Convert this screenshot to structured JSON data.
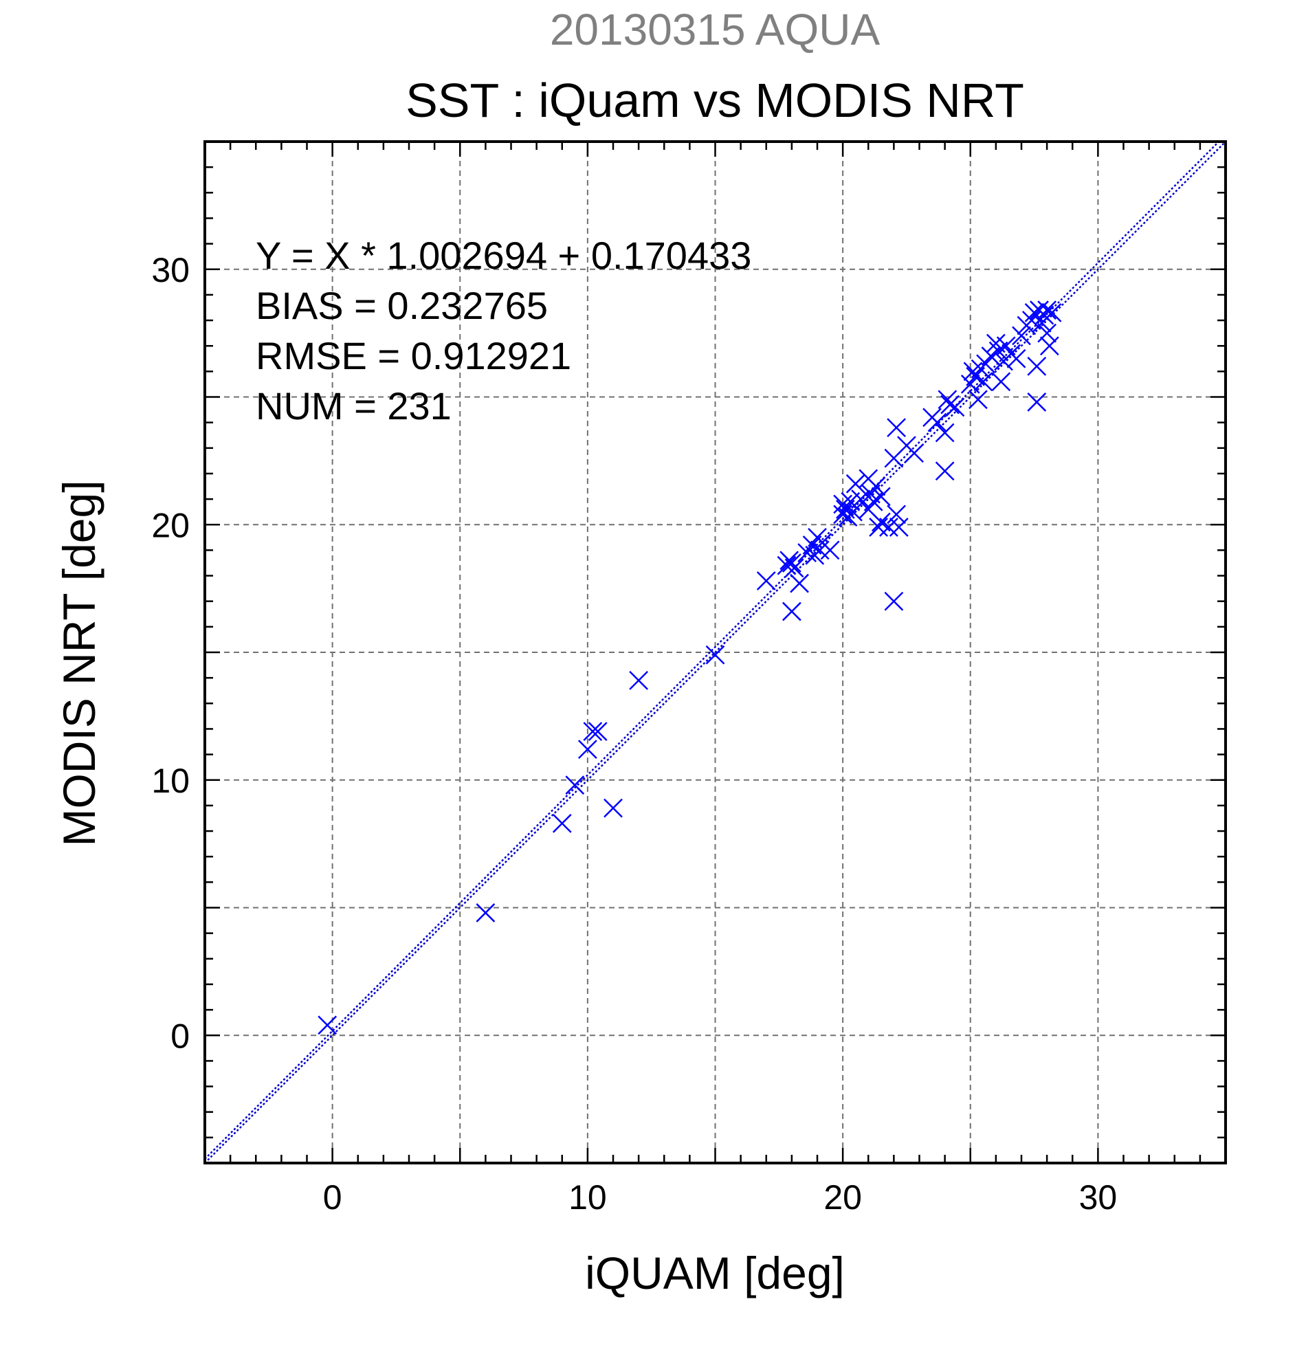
{
  "chart_data": {
    "type": "scatter",
    "title": "20130315 AQUA",
    "subtitle": "SST : iQuam vs MODIS NRT",
    "xlabel": "iQUAM [deg]",
    "ylabel": "MODIS NRT [deg]",
    "xlim": [
      -5,
      35
    ],
    "ylim": [
      -5,
      35
    ],
    "xticks": [
      0,
      10,
      20,
      30
    ],
    "yticks": [
      0,
      10,
      20,
      30
    ],
    "grid": true,
    "marker": "x",
    "marker_color": "#0000ff",
    "line_color": "#0000cc",
    "fit_line": {
      "slope": 1.002694,
      "intercept": 0.170433
    },
    "annotations": [
      "Y = X * 1.002694 + 0.170433",
      "BIAS = 0.232765",
      "RMSE = 0.912921",
      "NUM = 231"
    ],
    "points": [
      [
        -0.2,
        0.4
      ],
      [
        6.0,
        4.8
      ],
      [
        9.0,
        8.3
      ],
      [
        9.5,
        9.8
      ],
      [
        10.0,
        11.2
      ],
      [
        10.2,
        11.9
      ],
      [
        10.4,
        11.9
      ],
      [
        11.0,
        8.9
      ],
      [
        12.0,
        13.9
      ],
      [
        15.0,
        14.9
      ],
      [
        17.0,
        17.8
      ],
      [
        17.8,
        18.4
      ],
      [
        17.9,
        18.6
      ],
      [
        18.0,
        18.5
      ],
      [
        18.1,
        18.3
      ],
      [
        18.0,
        16.6
      ],
      [
        18.3,
        17.7
      ],
      [
        18.6,
        18.9
      ],
      [
        18.8,
        19.2
      ],
      [
        18.9,
        18.8
      ],
      [
        19.0,
        19.5
      ],
      [
        19.1,
        19.0
      ],
      [
        19.2,
        19.3
      ],
      [
        19.5,
        19.0
      ],
      [
        20.0,
        20.4
      ],
      [
        20.0,
        20.8
      ],
      [
        20.1,
        20.6
      ],
      [
        20.2,
        20.3
      ],
      [
        20.3,
        20.9
      ],
      [
        20.4,
        20.5
      ],
      [
        20.5,
        21.6
      ],
      [
        20.7,
        21.0
      ],
      [
        21.0,
        21.8
      ],
      [
        21.0,
        20.6
      ],
      [
        21.1,
        21.2
      ],
      [
        21.2,
        20.9
      ],
      [
        21.3,
        21.5
      ],
      [
        21.4,
        19.9
      ],
      [
        21.5,
        20.1
      ],
      [
        21.5,
        21.1
      ],
      [
        21.8,
        19.9
      ],
      [
        22.0,
        17.0
      ],
      [
        22.0,
        22.6
      ],
      [
        22.1,
        23.8
      ],
      [
        22.1,
        20.4
      ],
      [
        22.2,
        19.9
      ],
      [
        22.5,
        23.1
      ],
      [
        22.8,
        22.8
      ],
      [
        23.5,
        24.2
      ],
      [
        23.7,
        24.0
      ],
      [
        24.0,
        22.1
      ],
      [
        24.0,
        23.6
      ],
      [
        24.1,
        24.9
      ],
      [
        24.2,
        24.7
      ],
      [
        24.4,
        24.6
      ],
      [
        25.0,
        25.5
      ],
      [
        25.1,
        26.0
      ],
      [
        25.2,
        25.8
      ],
      [
        25.3,
        24.9
      ],
      [
        25.4,
        26.1
      ],
      [
        25.5,
        25.6
      ],
      [
        25.6,
        26.3
      ],
      [
        25.8,
        26.6
      ],
      [
        26.0,
        27.1
      ],
      [
        26.1,
        26.8
      ],
      [
        26.2,
        25.6
      ],
      [
        26.3,
        26.4
      ],
      [
        26.4,
        27.0
      ],
      [
        26.6,
        26.7
      ],
      [
        26.8,
        26.5
      ],
      [
        27.0,
        27.4
      ],
      [
        27.2,
        27.8
      ],
      [
        27.4,
        28.0
      ],
      [
        27.5,
        28.3
      ],
      [
        27.6,
        24.8
      ],
      [
        27.6,
        26.2
      ],
      [
        27.7,
        28.4
      ],
      [
        27.8,
        27.9
      ],
      [
        27.9,
        28.2
      ],
      [
        28.0,
        28.4
      ],
      [
        28.0,
        27.5
      ],
      [
        28.1,
        27.0
      ],
      [
        28.2,
        28.3
      ]
    ]
  }
}
